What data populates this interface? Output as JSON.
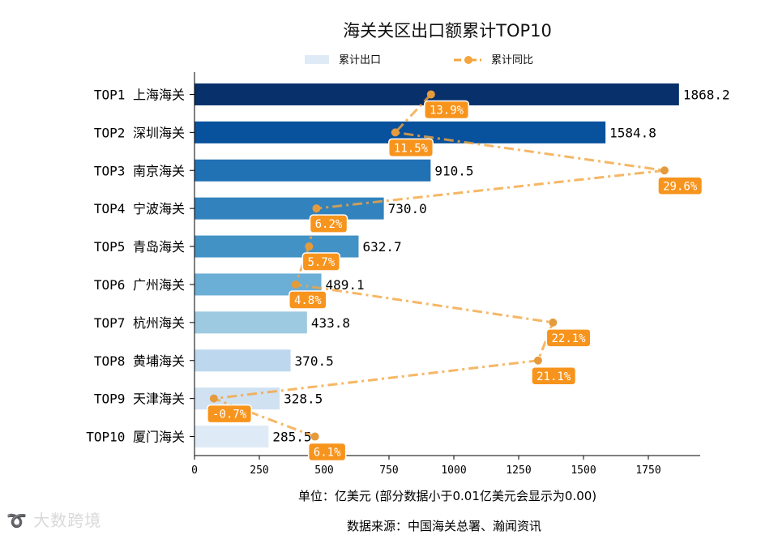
{
  "chart_data": {
    "type": "bar",
    "title": "海关关区出口额累计TOP10",
    "categories": [
      "TOP1 上海海关",
      "TOP2 深圳海关",
      "TOP3 南京海关",
      "TOP4 宁波海关",
      "TOP5 青岛海关",
      "TOP6 广州海关",
      "TOP7 杭州海关",
      "TOP8 黄埔海关",
      "TOP9 天津海关",
      "TOP10 厦门海关"
    ],
    "series": [
      {
        "name": "累计出口",
        "type": "bar",
        "values": [
          1868.2,
          1584.8,
          910.5,
          730.0,
          632.7,
          489.1,
          433.8,
          370.5,
          328.5,
          285.5
        ],
        "value_labels": [
          "1868.2",
          "1584.8",
          "910.5",
          "730.0",
          "632.7",
          "489.1",
          "433.8",
          "370.5",
          "328.5",
          "285.5"
        ],
        "colors": [
          "#08306b",
          "#08519c",
          "#2171b5",
          "#3182bd",
          "#4292c6",
          "#6baed6",
          "#9ecae1",
          "#bdd7ee",
          "#d0e1f2",
          "#deebf7"
        ]
      },
      {
        "name": "累计同比",
        "type": "line",
        "values": [
          13.9,
          11.5,
          29.6,
          6.2,
          5.7,
          4.8,
          22.1,
          21.1,
          -0.7,
          6.1
        ],
        "value_labels": [
          "13.9%",
          "11.5%",
          "29.6%",
          "6.2%",
          "5.7%",
          "4.8%",
          "22.1%",
          "21.1%",
          "-0.7%",
          "6.1%"
        ],
        "color": "#f4a53f"
      }
    ],
    "xlim": [
      0,
      1950
    ],
    "xticks": [
      0,
      250,
      500,
      750,
      1000,
      1250,
      1500,
      1750
    ],
    "xticklabels": [
      "0",
      "250",
      "500",
      "750",
      "1000",
      "1250",
      "1500",
      "1750"
    ],
    "legend_position": "top-center",
    "grid": false,
    "xlabel": "单位：亿美元  (部分数据小于0.01亿美元会显示为0.00)",
    "source": "数据来源：中国海关总署、瀚闻资讯"
  },
  "watermark": "大数跨境"
}
